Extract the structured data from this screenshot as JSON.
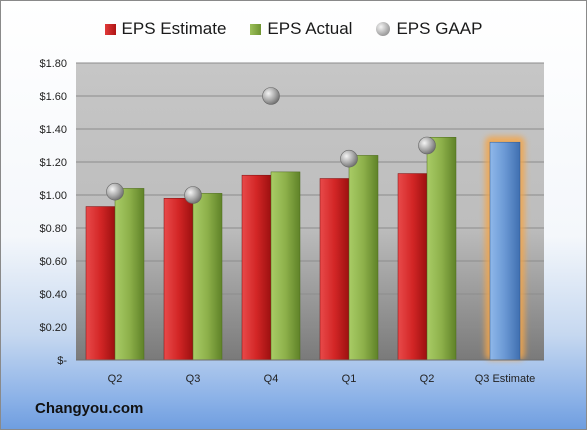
{
  "chart_data": {
    "type": "bar",
    "categories": [
      "Q2",
      "Q3",
      "Q4",
      "Q1",
      "Q2",
      "Q3 Estimate"
    ],
    "series": [
      {
        "name": "EPS Estimate",
        "kind": "bar",
        "color": "#c81e1e",
        "values": [
          0.93,
          0.98,
          1.12,
          1.1,
          1.13,
          null
        ]
      },
      {
        "name": "EPS Actual",
        "kind": "bar",
        "color": "#86aa44",
        "values": [
          1.04,
          1.01,
          1.14,
          1.24,
          1.35,
          null
        ]
      },
      {
        "name": "EPS GAAP",
        "kind": "marker",
        "color": "#9e9e9e",
        "values": [
          1.02,
          1.0,
          1.6,
          1.22,
          1.3,
          null
        ]
      },
      {
        "kind": "bar",
        "color": "#6a98d4",
        "highlight": "#f3a64c",
        "values": [
          null,
          null,
          null,
          null,
          null,
          1.32
        ]
      }
    ],
    "ylim": [
      0,
      1.8
    ],
    "yticks": [
      0,
      0.2,
      0.4,
      0.6,
      0.8,
      1.0,
      1.2,
      1.4,
      1.6,
      1.8
    ],
    "ytick_labels": [
      "$-",
      "$0.20",
      "$0.40",
      "$0.60",
      "$0.80",
      "$1.00",
      "$1.20",
      "$1.40",
      "$1.60",
      "$1.80"
    ],
    "grid": true,
    "legend_position": "top-center"
  },
  "legend": {
    "estimate": "EPS Estimate",
    "actual": "EPS Actual",
    "gaap": "EPS GAAP"
  },
  "footer": {
    "brand": "Changyou.com"
  }
}
